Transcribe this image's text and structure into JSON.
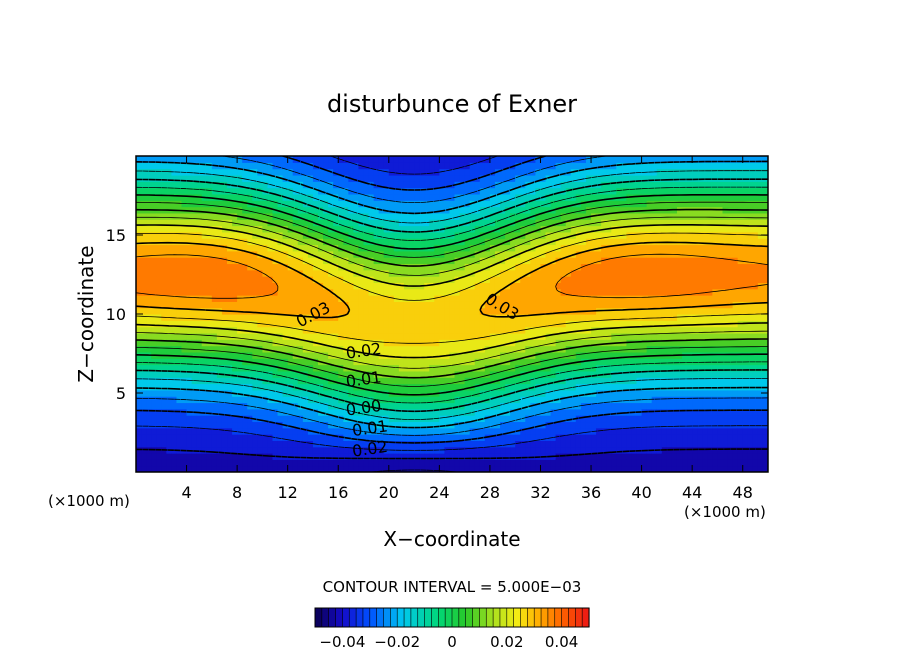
{
  "chart_data": {
    "type": "contour",
    "title": "disturbunce of Exner",
    "xlabel": "X−coordinate",
    "ylabel": "Z−coordinate",
    "x_unit_left": "(×1000 m)",
    "x_unit_right": "(×1000 m)",
    "xlim": [
      0,
      50
    ],
    "ylim": [
      0,
      20
    ],
    "x_ticks": [
      4,
      8,
      12,
      16,
      20,
      24,
      28,
      32,
      36,
      40,
      44,
      48
    ],
    "x_tick_labels": [
      "4",
      "8",
      "12",
      "16",
      "20",
      "24",
      "28",
      "32",
      "36",
      "40",
      "44",
      "48"
    ],
    "y_ticks": [
      5,
      10,
      15
    ],
    "y_tick_labels": [
      "5",
      "10",
      "15"
    ],
    "contour_interval_label": "CONTOUR INTERVAL = 5.000E−03",
    "contour_interval": 0.005,
    "level_range": [
      -0.05,
      0.05
    ],
    "field_features": {
      "max_value_approx": 0.037,
      "max_locations": [
        [
          5,
          12.5
        ],
        [
          40,
          12.5
        ]
      ],
      "min_value_approx": -0.04,
      "min_location": [
        22,
        0
      ],
      "saddle_location": [
        22,
        12
      ]
    },
    "contour_labels": [
      {
        "text": "0.03",
        "x": 14,
        "y": 10
      },
      {
        "text": "0.03",
        "x": 29,
        "y": 10.5
      },
      {
        "text": "0.02",
        "x": 18,
        "y": 7.7
      },
      {
        "text": "0.01",
        "x": 18,
        "y": 5.9
      },
      {
        "text": "0.00",
        "x": 18,
        "y": 4.1
      },
      {
        "text": "0.01",
        "x": 18.5,
        "y": 2.8
      },
      {
        "text": "0.02",
        "x": 18.5,
        "y": 1.5
      }
    ],
    "colorbar": {
      "range": [
        -0.05,
        0.05
      ],
      "tick_labels": [
        "−0.04",
        "−0.02",
        "0",
        "0.02",
        "0.04"
      ],
      "tick_values": [
        -0.04,
        -0.02,
        0,
        0.02,
        0.04
      ]
    }
  }
}
